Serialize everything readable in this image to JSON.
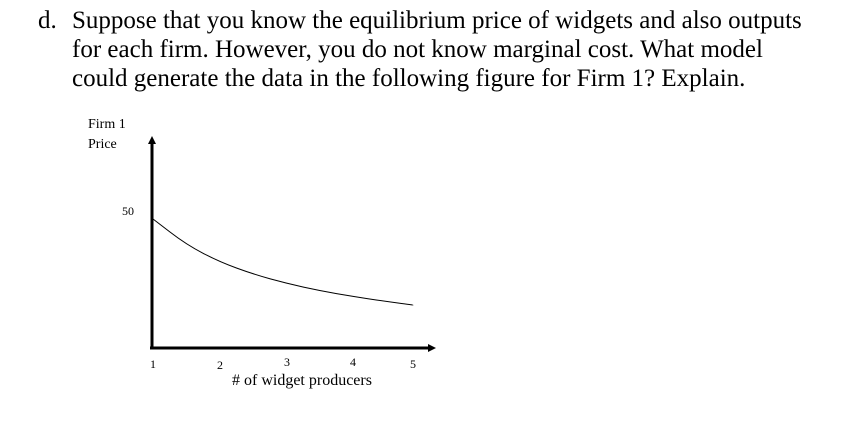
{
  "question": {
    "marker": "d.",
    "text": "Suppose that you know the equilibrium price of widgets and also outputs\nfor each firm. However, you do not know marginal cost. What model\ncould generate the data in the following figure for Firm 1? Explain."
  },
  "chart_data": {
    "type": "line",
    "ylabel_lines": [
      "Firm 1",
      "Price"
    ],
    "xlabel": "# of widget producers",
    "x_ticks": [
      "1",
      "2",
      "3",
      "4",
      "5"
    ],
    "y_tick": "50",
    "series": [
      {
        "x": [
          1,
          1.5,
          2,
          2.5,
          3,
          3.5,
          4,
          4.5,
          5
        ],
        "y": [
          50,
          40,
          33.3,
          28.6,
          25,
          22.2,
          20,
          18.2,
          16.7
        ]
      }
    ],
    "xlim": [
      1,
      5
    ],
    "ylim": [
      0,
      50
    ],
    "grid": false
  }
}
